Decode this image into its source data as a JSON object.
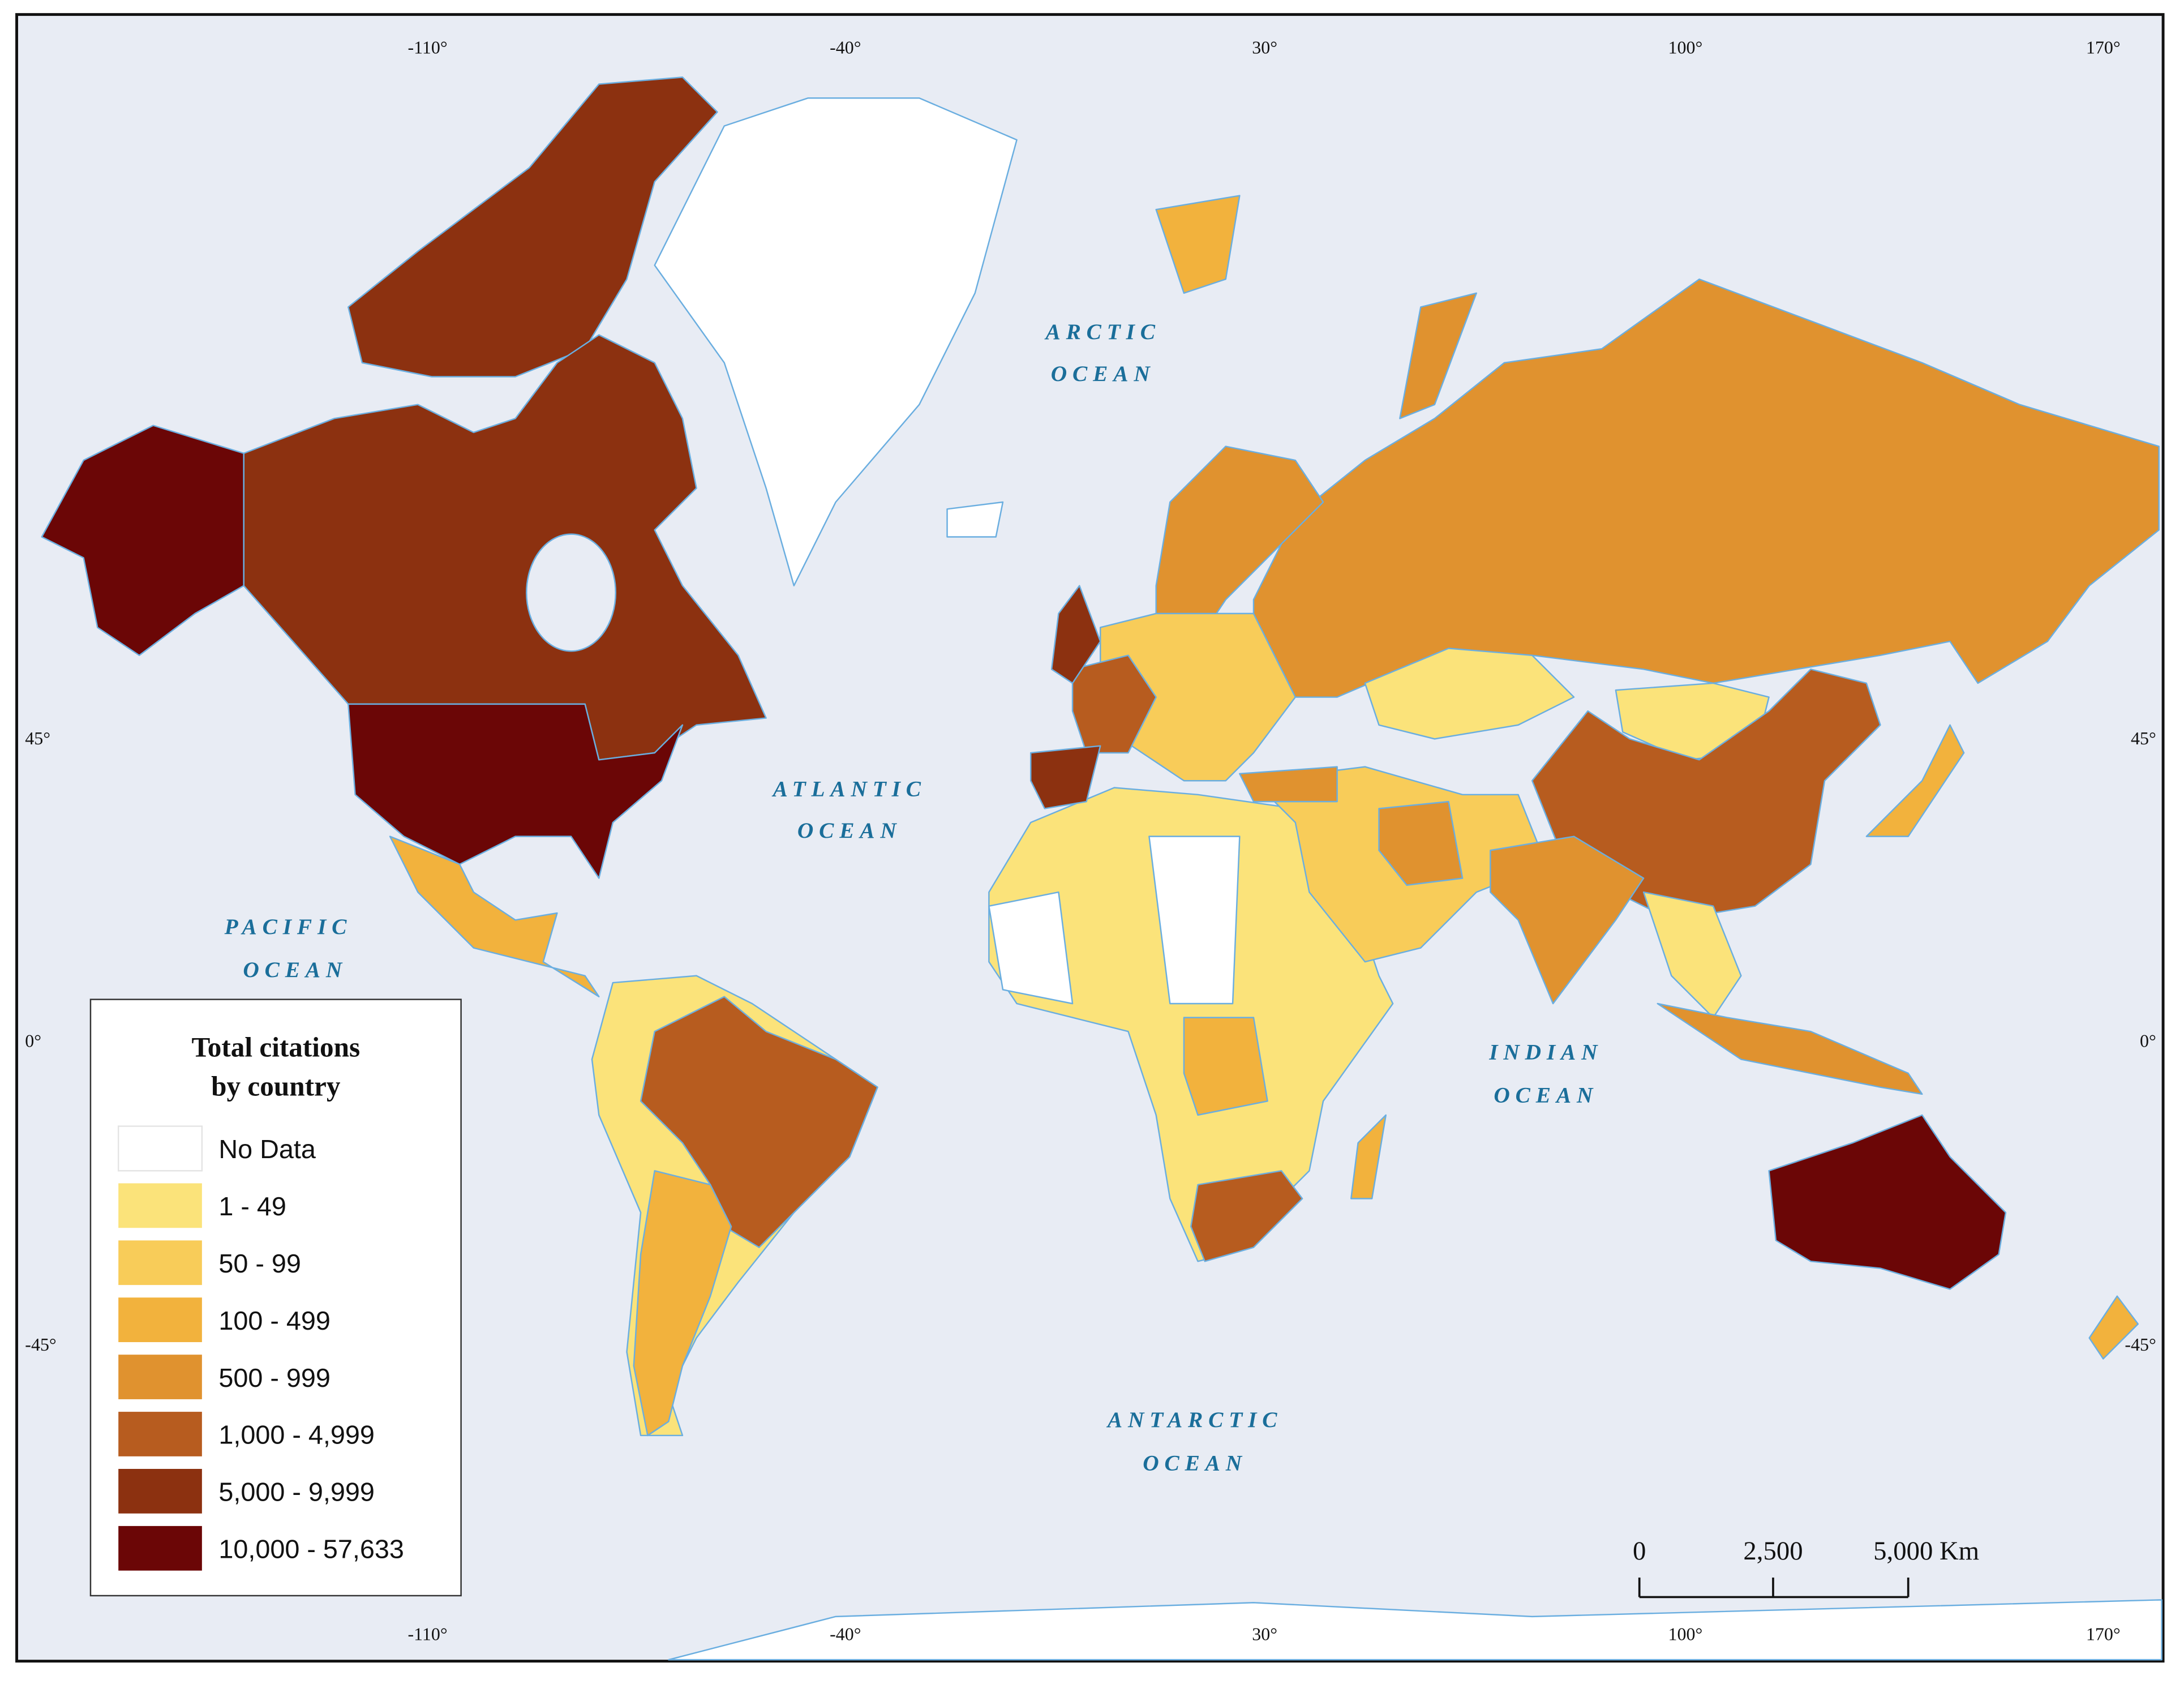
{
  "map": {
    "ocean_labels": [
      [
        "ARCTIC",
        "OCEAN"
      ],
      [
        "ATLANTIC",
        "OCEAN"
      ],
      [
        "PACIFIC",
        "OCEAN"
      ],
      [
        "INDIAN",
        "OCEAN"
      ],
      [
        "ANTARCTIC",
        "OCEAN"
      ]
    ],
    "longitudes": [
      "-110°",
      "-40°",
      "30°",
      "100°",
      "170°"
    ],
    "latitudes": [
      "45°",
      "0°",
      "-45°"
    ],
    "scale_bar": [
      "0",
      "2,500",
      "5,000 Km"
    ],
    "legend": {
      "title": [
        "Total citations",
        "by country"
      ],
      "items": [
        {
          "label": "No Data",
          "color": "#ffffff"
        },
        {
          "label": "1 - 49",
          "color": "#fbe37a"
        },
        {
          "label": "50 - 99",
          "color": "#f8cc59"
        },
        {
          "label": "100 - 499",
          "color": "#f2b23d"
        },
        {
          "label": "500 - 999",
          "color": "#e0922f"
        },
        {
          "label": "1,000 - 4,999",
          "color": "#b75c1f"
        },
        {
          "label": "5,000 - 9,999",
          "color": "#8c3110"
        },
        {
          "label": "10,000 - 57,633",
          "color": "#6b0606"
        }
      ]
    }
  }
}
